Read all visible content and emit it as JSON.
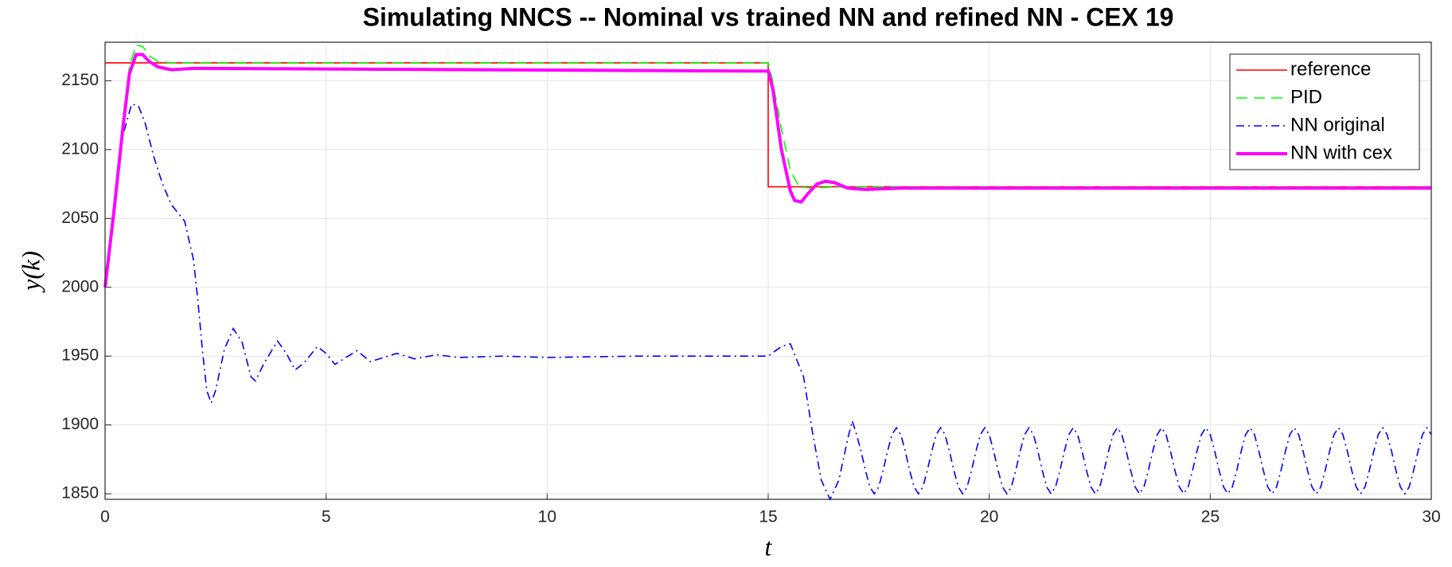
{
  "chart_data": {
    "type": "line",
    "title": "Simulating NNCS -- Nominal vs trained NN and refined NN - CEX 19",
    "x_label": "t",
    "y_label": "y(k)",
    "xlim": [
      0,
      30
    ],
    "xticks": [
      0,
      5,
      10,
      15,
      20,
      25,
      30
    ],
    "ylim": [
      1846,
      2178
    ],
    "yticks": [
      1850,
      1900,
      1950,
      2000,
      2050,
      2100,
      2150
    ],
    "grid": true,
    "legend": "upper right",
    "series": [
      {
        "name": "reference",
        "color": "#ff0000",
        "linestyle": "solid",
        "x": [
          0,
          15,
          15,
          30
        ],
        "values": [
          2163,
          2163,
          2073,
          2073
        ]
      },
      {
        "name": "PID",
        "color": "#00ff00",
        "linestyle": "dashed",
        "x": [
          0,
          0.2,
          0.4,
          0.55,
          0.7,
          0.85,
          1.0,
          1.2,
          1.5,
          15,
          15.1,
          15.3,
          15.5,
          15.7,
          16.0,
          16.5,
          30
        ],
        "values": [
          2000,
          2060,
          2120,
          2160,
          2176,
          2175,
          2168,
          2164,
          2163,
          2163,
          2150,
          2115,
          2085,
          2073,
          2072,
          2073,
          2073
        ]
      },
      {
        "name": "NN original",
        "color": "#0000ff",
        "linestyle": "dashdot",
        "x": [
          0,
          0.2,
          0.4,
          0.6,
          0.75,
          0.9,
          1.1,
          1.3,
          1.5,
          1.8,
          2.0,
          2.1,
          2.2,
          2.3,
          2.4,
          2.5,
          2.7,
          2.9,
          3.1,
          3.3,
          3.4,
          3.6,
          3.9,
          4.1,
          4.3,
          4.5,
          4.8,
          5.0,
          5.2,
          5.5,
          5.7,
          6.0,
          6.3,
          6.6,
          7,
          7.5,
          8,
          9,
          10,
          12,
          15,
          15.3,
          15.5,
          15.8,
          16.0,
          16.2,
          16.4,
          16.6,
          16.8,
          16.9,
          17,
          17.1,
          17.2,
          17.3,
          17.4,
          17.5,
          17.6,
          17.7,
          17.8,
          17.9,
          18,
          18.1,
          18.2,
          18.3,
          18.4,
          18.5,
          18.6,
          18.7,
          18.8,
          18.9,
          19,
          19.1,
          19.2,
          19.3,
          19.4,
          19.5,
          19.6,
          19.7,
          19.8,
          19.9,
          20,
          20.1,
          20.2,
          20.3,
          20.4,
          20.5,
          20.6,
          20.7,
          20.8,
          20.9,
          21,
          21.1,
          21.2,
          21.3,
          21.4,
          21.5,
          21.6,
          21.7,
          21.8,
          21.9,
          22,
          22.1,
          22.2,
          22.3,
          22.4,
          22.5,
          22.6,
          22.7,
          22.8,
          22.9,
          23,
          23.1,
          23.2,
          23.3,
          23.4,
          23.5,
          23.6,
          23.7,
          23.8,
          23.9,
          24,
          24.1,
          24.2,
          24.3,
          24.4,
          24.5,
          24.6,
          24.7,
          24.8,
          24.9,
          25,
          25.1,
          25.2,
          25.3,
          25.4,
          25.5,
          25.6,
          25.7,
          25.8,
          25.9,
          26,
          26.1,
          26.2,
          26.3,
          26.4,
          26.5,
          26.6,
          26.7,
          26.8,
          26.9,
          27,
          27.1,
          27.2,
          27.3,
          27.4,
          27.5,
          27.6,
          27.7,
          27.8,
          27.9,
          28,
          28.1,
          28.2,
          28.3,
          28.4,
          28.5,
          28.6,
          28.7,
          28.8,
          28.9,
          29,
          29.1,
          29.2,
          29.3,
          29.4,
          29.5,
          29.6,
          29.7,
          29.8,
          29.9,
          30
        ],
        "values": [
          2000,
          2060,
          2110,
          2133,
          2132,
          2120,
          2095,
          2075,
          2060,
          2048,
          2020,
          1990,
          1955,
          1925,
          1916,
          1925,
          1955,
          1970,
          1960,
          1935,
          1932,
          1945,
          1961,
          1952,
          1940,
          1945,
          1957,
          1952,
          1944,
          1950,
          1954,
          1946,
          1949,
          1952,
          1948,
          1951,
          1949,
          1950,
          1949,
          1950,
          1950,
          1957,
          1959,
          1935,
          1895,
          1860,
          1846,
          1860,
          1890,
          1903,
          1893,
          1881,
          1867,
          1855,
          1850,
          1855,
          1867,
          1881,
          1893,
          1898,
          1893,
          1881,
          1867,
          1855,
          1850,
          1855,
          1867,
          1881,
          1893,
          1898,
          1893,
          1881,
          1867,
          1855,
          1850,
          1855,
          1867,
          1881,
          1893,
          1898,
          1893,
          1881,
          1867,
          1855,
          1850,
          1855,
          1867,
          1881,
          1893,
          1898,
          1893,
          1881,
          1867,
          1855,
          1850,
          1855,
          1867,
          1881,
          1893,
          1898,
          1893,
          1881,
          1867,
          1855,
          1850,
          1855,
          1867,
          1881,
          1893,
          1898,
          1893,
          1881,
          1867,
          1855,
          1850,
          1855,
          1867,
          1881,
          1893,
          1898,
          1893,
          1881,
          1867,
          1855,
          1850,
          1855,
          1867,
          1881,
          1893,
          1898,
          1893,
          1881,
          1867,
          1855,
          1850,
          1855,
          1867,
          1881,
          1893,
          1898,
          1893,
          1881,
          1867,
          1855,
          1850,
          1855,
          1867,
          1881,
          1893,
          1898,
          1893,
          1881,
          1867,
          1855,
          1850,
          1855,
          1867,
          1881,
          1893,
          1898,
          1893,
          1881,
          1867,
          1855,
          1850,
          1855,
          1867,
          1881,
          1893,
          1898,
          1893,
          1881,
          1867,
          1855,
          1850,
          1855,
          1867,
          1881,
          1893,
          1898,
          1893
        ]
      },
      {
        "name": "NN with cex",
        "color": "#ff00ff",
        "linestyle": "dashdot-marker",
        "x": [
          0,
          0.2,
          0.4,
          0.55,
          0.7,
          0.85,
          1.0,
          1.2,
          1.5,
          2,
          15,
          15.1,
          15.3,
          15.5,
          15.6,
          15.75,
          15.9,
          16.1,
          16.3,
          16.5,
          16.8,
          17.2,
          18,
          30
        ],
        "values": [
          2000,
          2055,
          2115,
          2155,
          2169,
          2169,
          2164,
          2160,
          2158,
          2159,
          2157,
          2145,
          2100,
          2070,
          2063,
          2062,
          2068,
          2075,
          2077,
          2076,
          2072,
          2071,
          2072,
          2072
        ]
      }
    ]
  }
}
